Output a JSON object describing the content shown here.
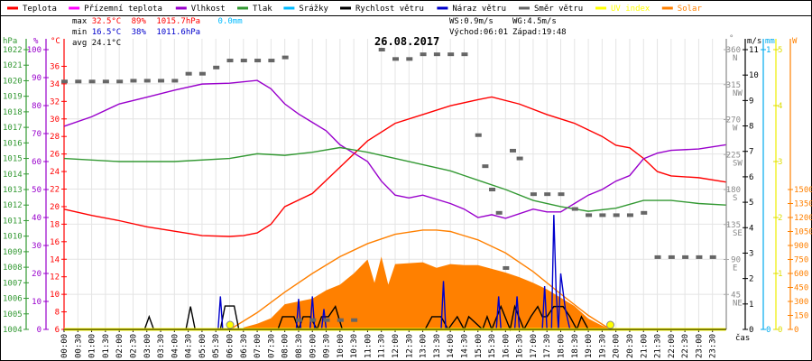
{
  "title": "26.08.2017",
  "legend": [
    {
      "label": "Teplota",
      "color": "#ff0000"
    },
    {
      "label": "Přízemní teplota",
      "color": "#ff00ff"
    },
    {
      "label": "Vlhkost",
      "color": "#9900cc"
    },
    {
      "label": "Tlak",
      "color": "#339933"
    },
    {
      "label": "Srážky",
      "color": "#00bbff"
    },
    {
      "label": "Rychlost větru",
      "color": "#000000"
    },
    {
      "label": "Náraz větru",
      "color": "#0000cc"
    },
    {
      "label": "Směr větru",
      "color": "#666666"
    },
    {
      "label": "UV index",
      "color": "#ffff00"
    },
    {
      "label": "Solar",
      "color": "#ff8000"
    }
  ],
  "stats": {
    "max_label": "max",
    "max_temp": "32.5°C",
    "max_hum": "89%",
    "max_press": "1015.7hPa",
    "rain": "0.0mm",
    "min_label": "min",
    "min_temp": "16.5°C",
    "min_hum": "38%",
    "min_press": "1011.6hPa",
    "avg_label": "avg",
    "avg_temp": "24.1°C",
    "ws": "WS:0.9m/s",
    "wg": "WG:4.5m/s",
    "sunrise": "Východ:06:01",
    "sunset": "Západ:19:48"
  },
  "chart_data": {
    "type": "line",
    "title": "26.08.2017",
    "xlabel": "čas",
    "x_ticks": [
      "00:00",
      "00:30",
      "01:00",
      "01:30",
      "02:00",
      "02:30",
      "03:00",
      "03:30",
      "04:00",
      "04:30",
      "05:00",
      "05:30",
      "06:00",
      "06:30",
      "07:00",
      "07:30",
      "08:00",
      "08:30",
      "09:00",
      "09:30",
      "10:00",
      "10:30",
      "11:00",
      "11:30",
      "12:00",
      "12:30",
      "13:00",
      "13:30",
      "14:00",
      "14:30",
      "15:00",
      "15:30",
      "16:00",
      "16:30",
      "17:00",
      "17:30",
      "18:00",
      "18:30",
      "19:00",
      "19:30",
      "20:00",
      "20:30",
      "21:00",
      "21:30",
      "22:00",
      "22:30",
      "23:00",
      "23:30"
    ],
    "grid": true,
    "axes": {
      "pressure": {
        "unit": "hPa",
        "range": [
          1004,
          1022
        ],
        "color": "#339933"
      },
      "humidity": {
        "unit": "%",
        "range": [
          0,
          100
        ],
        "color": "#9900cc"
      },
      "temperature": {
        "unit": "°C",
        "range": [
          6,
          37.9
        ],
        "ticks_from": 6,
        "ticks_to": 36,
        "color": "#ff0000"
      },
      "direction": {
        "unit": "°",
        "range": [
          0,
          360
        ],
        "labels": [
          [
            "45",
            "NE"
          ],
          [
            "90",
            "E"
          ],
          [
            "135",
            "SE"
          ],
          [
            "180",
            "S"
          ],
          [
            "225",
            "SW"
          ],
          [
            "270",
            "W"
          ],
          [
            "315",
            "NW"
          ],
          [
            "360",
            "N"
          ]
        ],
        "color": "#888888"
      },
      "wind": {
        "unit": "m/s",
        "range": [
          0,
          11
        ],
        "color": "#000000"
      },
      "rain": {
        "unit": "mm",
        "range": [
          0,
          1
        ],
        "color": "#00aaee"
      },
      "uv": {
        "unit": "",
        "range": [
          0,
          5
        ],
        "color": "#eeee00"
      },
      "solar": {
        "unit": "W",
        "range": [
          0,
          3000
        ],
        "ticks_to": 1500,
        "color": "#ff8000"
      }
    },
    "series": [
      {
        "name": "Teplota",
        "axis": "temperature",
        "color": "#ff0000",
        "x": [
          "00:00",
          "01:00",
          "02:00",
          "03:00",
          "04:00",
          "05:00",
          "06:00",
          "06:30",
          "07:00",
          "07:30",
          "08:00",
          "09:00",
          "10:00",
          "11:00",
          "12:00",
          "13:00",
          "14:00",
          "15:00",
          "15:30",
          "16:30",
          "17:30",
          "18:30",
          "19:30",
          "20:00",
          "20:30",
          "21:00",
          "21:30",
          "22:00",
          "23:00",
          "23:59"
        ],
        "y": [
          19.7,
          19.0,
          18.4,
          17.7,
          17.2,
          16.7,
          16.6,
          16.7,
          17.0,
          18.0,
          20.0,
          21.5,
          24.5,
          27.5,
          29.5,
          30.5,
          31.5,
          32.2,
          32.5,
          31.7,
          30.5,
          29.5,
          28.0,
          27.0,
          26.7,
          25.5,
          24.0,
          23.5,
          23.3,
          22.8
        ]
      },
      {
        "name": "Vlhkost",
        "axis": "humidity",
        "color": "#9900cc",
        "x": [
          "00:00",
          "01:00",
          "02:00",
          "03:00",
          "04:00",
          "05:00",
          "06:00",
          "07:00",
          "07:30",
          "08:00",
          "08:30",
          "09:00",
          "09:30",
          "10:00",
          "10:30",
          "11:00",
          "11:30",
          "12:00",
          "12:30",
          "13:00",
          "14:00",
          "14:30",
          "15:00",
          "15:30",
          "16:00",
          "17:00",
          "17:30",
          "18:00",
          "18:30",
          "19:00",
          "19:30",
          "20:00",
          "20:30",
          "21:00",
          "21:30",
          "22:00",
          "23:00",
          "23:59"
        ],
        "y": [
          72.6,
          76,
          80.6,
          83,
          85.5,
          87.7,
          88,
          89,
          86,
          80.6,
          77,
          74,
          71,
          66,
          63,
          60,
          53,
          48,
          47,
          48,
          45,
          43,
          40,
          41,
          39.7,
          43,
          42,
          42,
          45,
          48,
          50,
          53,
          55,
          61,
          63,
          64,
          64.5,
          66
        ]
      },
      {
        "name": "Tlak",
        "axis": "pressure",
        "color": "#339933",
        "x": [
          "00:00",
          "02:00",
          "04:00",
          "06:00",
          "07:00",
          "08:00",
          "09:00",
          "10:00",
          "11:00",
          "12:00",
          "13:00",
          "14:00",
          "15:00",
          "16:00",
          "17:00",
          "18:00",
          "19:00",
          "20:00",
          "21:00",
          "22:00",
          "23:00",
          "23:59"
        ],
        "y": [
          1015.0,
          1014.8,
          1014.8,
          1015.0,
          1015.3,
          1015.2,
          1015.4,
          1015.7,
          1015.4,
          1015.0,
          1014.6,
          1014.2,
          1013.6,
          1013.0,
          1012.3,
          1011.9,
          1011.6,
          1011.8,
          1012.3,
          1012.3,
          1012.1,
          1012.0
        ]
      },
      {
        "name": "Solar",
        "axis": "solar",
        "color": "#ff8000",
        "fill": true,
        "x": [
          "06:30",
          "07:00",
          "07:30",
          "08:00",
          "08:30",
          "09:00",
          "09:30",
          "10:00",
          "10:30",
          "11:00",
          "11:15",
          "11:30",
          "11:45",
          "12:00",
          "12:30",
          "13:00",
          "13:30",
          "14:00",
          "14:30",
          "15:00",
          "15:30",
          "16:00",
          "16:30",
          "17:00",
          "17:30",
          "18:00",
          "18:30",
          "19:00",
          "19:30",
          "19:50"
        ],
        "y": [
          20,
          60,
          120,
          270,
          300,
          330,
          420,
          480,
          600,
          750,
          500,
          780,
          480,
          700,
          710,
          720,
          660,
          700,
          690,
          690,
          650,
          610,
          560,
          500,
          430,
          340,
          250,
          116,
          40,
          0
        ]
      },
      {
        "name": "Solar max",
        "axis": "solar",
        "color": "#ff8000",
        "x": [
          "06:01",
          "07:00",
          "08:00",
          "09:00",
          "10:00",
          "11:00",
          "12:00",
          "13:00",
          "13:30",
          "14:00",
          "15:00",
          "16:00",
          "17:00",
          "18:00",
          "19:00",
          "19:48"
        ],
        "y": [
          0,
          180,
          400,
          600,
          780,
          920,
          1020,
          1065,
          1065,
          1050,
          960,
          820,
          620,
          380,
          150,
          0
        ]
      },
      {
        "name": "Rychlost větru",
        "axis": "wind",
        "color": "#000000",
        "x": [
          "02:55",
          "03:05",
          "03:15",
          "04:25",
          "04:35",
          "04:45",
          "05:40",
          "05:50",
          "06:10",
          "06:20",
          "07:45",
          "07:55",
          "08:20",
          "08:30",
          "08:40",
          "08:55",
          "09:10",
          "09:20",
          "09:35",
          "09:50",
          "10:05",
          "13:05",
          "13:20",
          "13:40",
          "13:55",
          "14:15",
          "14:30",
          "14:40",
          "15:10",
          "15:20",
          "15:30",
          "15:50",
          "16:10",
          "16:20",
          "16:40",
          "16:55",
          "17:10",
          "17:20",
          "17:30",
          "17:45",
          "18:05",
          "18:20",
          "18:35",
          "18:45",
          "19:00"
        ],
        "y": [
          0,
          0.5,
          0,
          0,
          0.9,
          0,
          0,
          0.92,
          0.92,
          0,
          0,
          0.5,
          0.5,
          0,
          0.5,
          0.5,
          0,
          0.5,
          0.5,
          0.9,
          0,
          0,
          0.5,
          0.5,
          0,
          0.5,
          0,
          0.5,
          0,
          0.5,
          0,
          0.9,
          0,
          0.9,
          0,
          0.5,
          0.9,
          0.5,
          0.5,
          0.9,
          0.9,
          0.5,
          0,
          0.5,
          0
        ]
      },
      {
        "name": "Náraz větru",
        "axis": "wind",
        "color": "#0000cc",
        "x": [
          "05:35",
          "05:40",
          "05:45",
          "08:25",
          "08:30",
          "08:35",
          "08:55",
          "09:00",
          "09:05",
          "09:20",
          "09:25",
          "09:30",
          "13:40",
          "13:45",
          "13:50",
          "15:40",
          "15:45",
          "15:50",
          "16:20",
          "16:25",
          "16:30",
          "17:20",
          "17:25",
          "17:30",
          "17:40",
          "17:45",
          "17:50",
          "17:55",
          "18:00",
          "18:10",
          "18:20"
        ],
        "y": [
          0,
          1.3,
          0,
          0,
          1.2,
          0,
          0,
          1.3,
          0,
          0,
          0.8,
          0,
          0,
          1.9,
          0,
          0,
          1.3,
          0,
          0,
          1.3,
          0,
          0,
          1.7,
          0,
          0,
          4.5,
          1.5,
          0,
          2.2,
          0.8,
          0
        ]
      },
      {
        "name": "Směr větru",
        "axis": "direction",
        "color": "#666666",
        "scatter": true,
        "x": [
          "00:00",
          "00:30",
          "01:00",
          "01:30",
          "02:00",
          "02:30",
          "03:00",
          "03:30",
          "04:00",
          "04:30",
          "05:00",
          "05:30",
          "06:00",
          "06:30",
          "07:00",
          "07:30",
          "08:00",
          "08:30",
          "09:00",
          "09:30",
          "10:00",
          "10:30",
          "11:30",
          "12:00",
          "12:30",
          "13:00",
          "13:30",
          "14:00",
          "14:30",
          "15:00",
          "15:15",
          "15:30",
          "15:45",
          "16:00",
          "16:15",
          "16:30",
          "17:00",
          "17:30",
          "18:00",
          "18:30",
          "19:00",
          "19:30",
          "20:00",
          "20:30",
          "21:00",
          "21:30",
          "22:00",
          "22:30",
          "23:00",
          "23:30"
        ],
        "y": [
          319,
          319,
          319,
          319,
          319,
          320,
          320,
          320,
          320,
          329,
          329,
          337,
          346,
          346,
          346,
          346,
          350,
          12,
          12,
          12,
          12,
          12,
          360,
          348,
          348,
          354,
          354,
          354,
          354,
          250,
          210,
          180,
          150,
          79,
          230,
          220,
          174,
          174,
          174,
          155,
          147,
          147,
          147,
          147,
          150,
          93,
          93,
          93,
          93,
          93
        ]
      },
      {
        "name": "UV index",
        "axis": "uv",
        "color": "#ffff00",
        "x": [
          "00:00",
          "06:01",
          "19:48",
          "23:59"
        ],
        "y": [
          0,
          0,
          0,
          0
        ]
      }
    ],
    "markers": [
      {
        "name": "sunrise",
        "x": "06:01"
      },
      {
        "name": "sunset",
        "x": "19:48"
      }
    ]
  }
}
